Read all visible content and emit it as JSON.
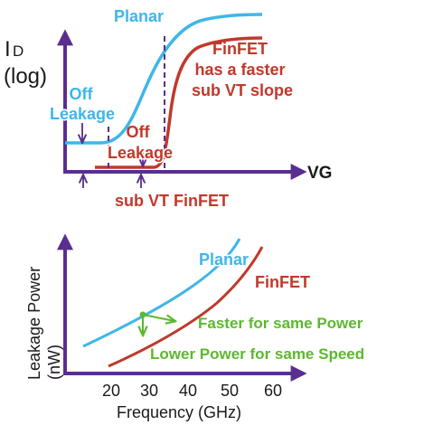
{
  "colors": {
    "axis": "#5a2d91",
    "planar": "#3fb6e8",
    "finfet": "#c0392b",
    "green": "#5cb82e",
    "text": "#1a1a1a",
    "white": "#ffffff"
  },
  "top": {
    "y_label_main": "I",
    "y_label_sub": "D",
    "y_label_log": "(log)",
    "x_label": "VG",
    "planar_label": "Planar",
    "finfet_label": [
      "FinFET",
      "has a faster",
      "sub VT  slope"
    ],
    "off_leakage_planar": [
      "Off",
      "Leakage"
    ],
    "off_leakage_finfet": [
      "Off",
      "Leakage"
    ],
    "sub_vt_finfet": "sub VT FinFET"
  },
  "bottom": {
    "y_label_main": "Leakage Power",
    "y_label_unit": "(nW)",
    "x_label": "Frequency (GHz)",
    "x_ticks": [
      "20",
      "30",
      "40",
      "50",
      "60"
    ],
    "planar_label": "Planar",
    "finfet_label": "FinFET",
    "note_same_power": "Faster for same Power",
    "note_same_speed": "Lower Power for same Speed"
  }
}
